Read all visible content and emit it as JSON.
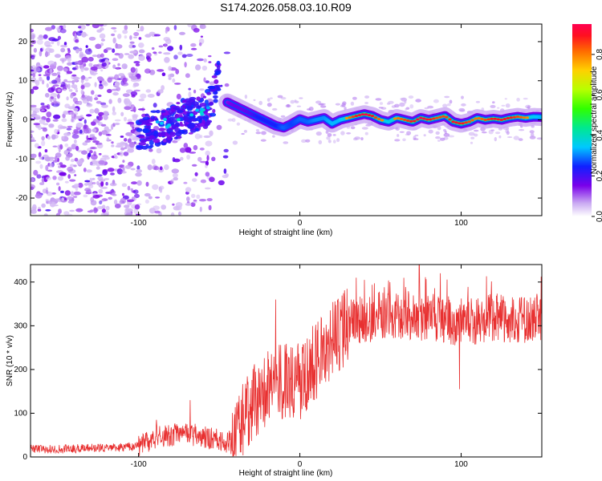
{
  "page_title": "S174.2026.058.03.10.R09",
  "chart_data": [
    {
      "type": "heatmap",
      "title": "S174.2026.058.03.10.R09",
      "xlabel": "Height of straight line (km)",
      "ylabel": "Frequency (Hz)",
      "xlim": [
        -167,
        150
      ],
      "ylim": [
        -24.5,
        24.5
      ],
      "xticks": [
        -100,
        0,
        100
      ],
      "yticks": [
        -20,
        -10,
        0,
        10,
        20
      ],
      "colorbar": {
        "label": "Normalized spectral amplitude",
        "range": [
          0.0,
          0.95
        ],
        "ticks": [
          0.0,
          0.2,
          0.4,
          0.6,
          0.8
        ]
      },
      "ridge": {
        "x": [
          -45,
          -40,
          -35,
          -30,
          -25,
          -20,
          -15,
          -10,
          -5,
          0,
          5,
          10,
          15,
          20,
          25,
          30,
          35,
          40,
          45,
          50,
          55,
          60,
          65,
          70,
          75,
          80,
          85,
          90,
          95,
          100,
          105,
          110,
          115,
          120,
          125,
          130,
          135,
          140,
          145,
          150
        ],
        "y": [
          4.5,
          3.5,
          2.5,
          1.5,
          0.5,
          -0.5,
          -1.5,
          -2.0,
          -1.0,
          0.2,
          -0.5,
          0.0,
          0.5,
          -1.0,
          0.0,
          0.5,
          1.0,
          1.5,
          1.0,
          0.0,
          -0.5,
          0.5,
          0.0,
          -0.5,
          0.5,
          0.0,
          0.5,
          1.0,
          -0.5,
          -1.0,
          -0.5,
          0.5,
          0.0,
          0.3,
          0.0,
          0.5,
          0.8,
          0.5,
          0.8,
          0.7
        ],
        "amplitude": [
          0.3,
          0.35,
          0.35,
          0.4,
          0.5,
          0.5,
          0.5,
          0.6,
          0.55,
          0.6,
          0.6,
          0.65,
          0.65,
          0.7,
          0.7,
          0.8,
          0.9,
          0.95,
          0.9,
          0.8,
          0.75,
          0.8,
          0.85,
          0.9,
          0.95,
          0.9,
          0.85,
          0.85,
          0.9,
          0.9,
          0.85,
          0.8,
          0.85,
          0.9,
          0.9,
          0.9,
          0.85,
          0.8,
          0.75,
          0.7
        ]
      },
      "precursor": {
        "x": [
          -100,
          -95,
          -90,
          -85,
          -80,
          -75,
          -70,
          -65,
          -60,
          -55,
          -50
        ],
        "y": [
          -4.0,
          -3.0,
          -2.0,
          -1.5,
          -1.0,
          0.0,
          1.0,
          1.0,
          1.5,
          4.0,
          12.0
        ]
      }
    },
    {
      "type": "line",
      "xlabel": "Height of straight line (km)",
      "ylabel": "SNR (10 * v/v)",
      "xlim": [
        -167,
        150
      ],
      "ylim": [
        0,
        440
      ],
      "xticks": [
        -100,
        0,
        100
      ],
      "yticks": [
        0,
        100,
        200,
        300,
        400
      ],
      "series": [
        {
          "name": "SNR",
          "color": "#e83030",
          "x": [
            -167,
            -150,
            -130,
            -110,
            -100,
            -90,
            -80,
            -70,
            -60,
            -50,
            -45,
            -40,
            -35,
            -30,
            -25,
            -20,
            -15,
            -10,
            -5,
            0,
            5,
            10,
            15,
            20,
            25,
            30,
            35,
            40,
            50,
            60,
            70,
            80,
            90,
            100,
            110,
            120,
            130,
            140,
            150
          ],
          "y": [
            18,
            18,
            20,
            22,
            26,
            45,
            50,
            55,
            45,
            40,
            35,
            30,
            85,
            120,
            140,
            165,
            160,
            175,
            180,
            170,
            200,
            220,
            240,
            265,
            285,
            300,
            315,
            310,
            325,
            325,
            320,
            315,
            310,
            305,
            310,
            318,
            315,
            315,
            320
          ]
        }
      ],
      "spikes": {
        "x": [
          -89,
          -68,
          -15,
          35,
          74,
          99,
          87,
          40
        ],
        "y": [
          85,
          130,
          360,
          410,
          440,
          155,
          420,
          405
        ]
      }
    }
  ]
}
